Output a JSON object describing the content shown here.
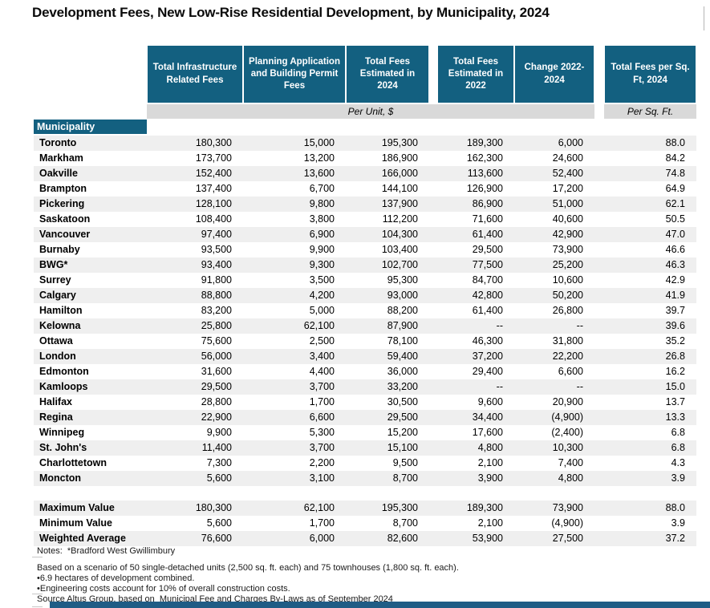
{
  "title": "Development Fees, New Low-Rise Residential Development, by Municipality, 2024",
  "colors": {
    "header_teal": "#136080",
    "unit_band_gray": "#d9d9d9",
    "row_stripe_gray": "#efefef",
    "bottom_bar_blue": "#1f5c85"
  },
  "chart_data": {
    "type": "table",
    "title": "Development Fees, New Low-Rise Residential Development, by Municipality, 2024",
    "row_header": "Municipality",
    "column_headers": [
      "Total Infrastructure Related Fees",
      "Planning Application and Building Permit Fees",
      "Total Fees Estimated in 2024",
      "Total Fees Estimated in 2022",
      "Change 2022-2024",
      "Total Fees per Sq. Ft, 2024"
    ],
    "unit_bands": {
      "per_unit": "Per Unit, $",
      "per_sqft": "Per Sq. Ft."
    },
    "rows": [
      {
        "municipality": "Toronto",
        "values": [
          "180,300",
          "15,000",
          "195,300",
          "189,300",
          "6,000",
          "88.0"
        ]
      },
      {
        "municipality": "Markham",
        "values": [
          "173,700",
          "13,200",
          "186,900",
          "162,300",
          "24,600",
          "84.2"
        ]
      },
      {
        "municipality": "Oakville",
        "values": [
          "152,400",
          "13,600",
          "166,000",
          "113,600",
          "52,400",
          "74.8"
        ]
      },
      {
        "municipality": "Brampton",
        "values": [
          "137,400",
          "6,700",
          "144,100",
          "126,900",
          "17,200",
          "64.9"
        ]
      },
      {
        "municipality": "Pickering",
        "values": [
          "128,100",
          "9,800",
          "137,900",
          "86,900",
          "51,000",
          "62.1"
        ]
      },
      {
        "municipality": "Saskatoon",
        "values": [
          "108,400",
          "3,800",
          "112,200",
          "71,600",
          "40,600",
          "50.5"
        ]
      },
      {
        "municipality": "Vancouver",
        "values": [
          "97,400",
          "6,900",
          "104,300",
          "61,400",
          "42,900",
          "47.0"
        ]
      },
      {
        "municipality": "Burnaby",
        "values": [
          "93,500",
          "9,900",
          "103,400",
          "29,500",
          "73,900",
          "46.6"
        ]
      },
      {
        "municipality": "BWG*",
        "values": [
          "93,400",
          "9,300",
          "102,700",
          "77,500",
          "25,200",
          "46.3"
        ]
      },
      {
        "municipality": "Surrey",
        "values": [
          "91,800",
          "3,500",
          "95,300",
          "84,700",
          "10,600",
          "42.9"
        ]
      },
      {
        "municipality": "Calgary",
        "values": [
          "88,800",
          "4,200",
          "93,000",
          "42,800",
          "50,200",
          "41.9"
        ]
      },
      {
        "municipality": "Hamilton",
        "values": [
          "83,200",
          "5,000",
          "88,200",
          "61,400",
          "26,800",
          "39.7"
        ]
      },
      {
        "municipality": "Kelowna",
        "values": [
          "25,800",
          "62,100",
          "87,900",
          "--",
          "--",
          "39.6"
        ]
      },
      {
        "municipality": "Ottawa",
        "values": [
          "75,600",
          "2,500",
          "78,100",
          "46,300",
          "31,800",
          "35.2"
        ]
      },
      {
        "municipality": "London",
        "values": [
          "56,000",
          "3,400",
          "59,400",
          "37,200",
          "22,200",
          "26.8"
        ]
      },
      {
        "municipality": "Edmonton",
        "values": [
          "31,600",
          "4,400",
          "36,000",
          "29,400",
          "6,600",
          "16.2"
        ]
      },
      {
        "municipality": "Kamloops",
        "values": [
          "29,500",
          "3,700",
          "33,200",
          "--",
          "--",
          "15.0"
        ]
      },
      {
        "municipality": "Halifax",
        "values": [
          "28,800",
          "1,700",
          "30,500",
          "9,600",
          "20,900",
          "13.7"
        ]
      },
      {
        "municipality": "Regina",
        "values": [
          "22,900",
          "6,600",
          "29,500",
          "34,400",
          "(4,900)",
          "13.3"
        ]
      },
      {
        "municipality": "Winnipeg",
        "values": [
          "9,900",
          "5,300",
          "15,200",
          "17,600",
          "(2,400)",
          "6.8"
        ]
      },
      {
        "municipality": "St. John's",
        "values": [
          "11,400",
          "3,700",
          "15,100",
          "4,800",
          "10,300",
          "6.8"
        ]
      },
      {
        "municipality": "Charlottetown",
        "values": [
          "7,300",
          "2,200",
          "9,500",
          "2,100",
          "7,400",
          "4.3"
        ]
      },
      {
        "municipality": "Moncton",
        "values": [
          "5,600",
          "3,100",
          "8,700",
          "3,900",
          "4,800",
          "3.9"
        ]
      }
    ],
    "summary_rows": [
      {
        "label": "Maximum Value",
        "values": [
          "180,300",
          "62,100",
          "195,300",
          "189,300",
          "73,900",
          "88.0"
        ]
      },
      {
        "label": "Minimum Value",
        "values": [
          "5,600",
          "1,700",
          "8,700",
          "2,100",
          "(4,900)",
          "3.9"
        ]
      },
      {
        "label": "Weighted Average",
        "values": [
          "76,600",
          "6,000",
          "82,600",
          "53,900",
          "27,500",
          "37.2"
        ]
      }
    ]
  },
  "notes": {
    "line1": "Notes:  *Bradford West Gwillimbury",
    "line2": "Based on a scenario of 50 single-detached units (2,500 sq. ft. each) and 75 townhouses (1,800 sq. ft. each).",
    "line3": "•6.9 hectares of development combined.",
    "line4": "•Engineering costs account for 10% of overall construction costs.",
    "line5": "Source Altus Group, based on  Municipal Fee and Charges By-Laws as of September 2024"
  }
}
